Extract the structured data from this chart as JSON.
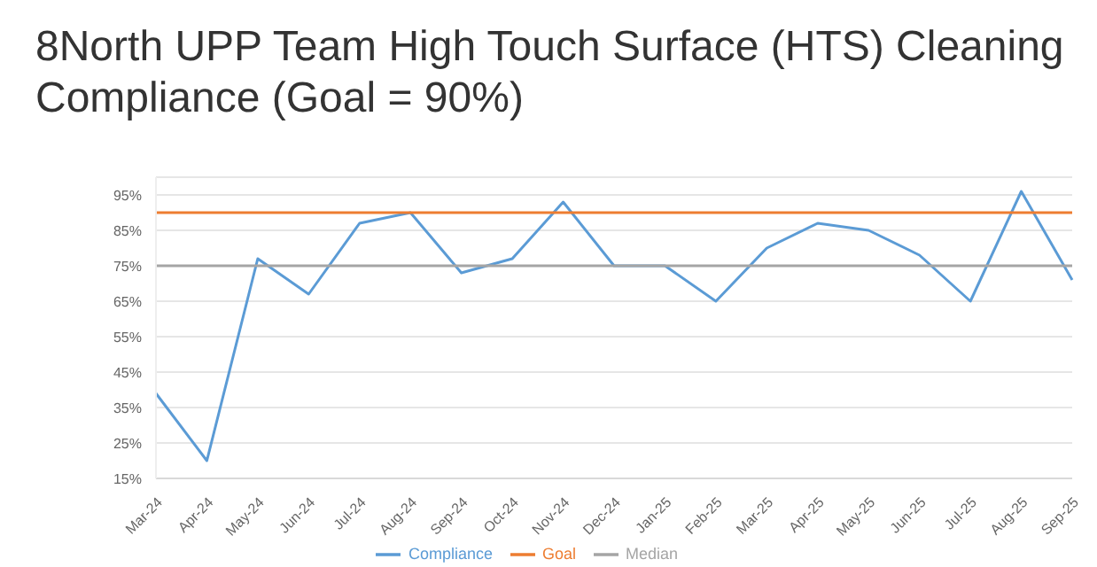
{
  "chart_data": {
    "type": "line",
    "title": "8North UPP Team High Touch Surface (HTS) Cleaning Compliance (Goal = 90%)",
    "categories": [
      "Mar-24",
      "Apr-24",
      "May-24",
      "Jun-24",
      "Jul-24",
      "Aug-24",
      "Sep-24",
      "Oct-24",
      "Nov-24",
      "Dec-24",
      "Jan-25",
      "Feb-25",
      "Mar-25",
      "Apr-25",
      "May-25",
      "Jun-25",
      "Jul-25",
      "Aug-25",
      "Sep-25"
    ],
    "series": [
      {
        "name": "Compliance",
        "color": "#5b9bd5",
        "values": [
          39,
          20,
          77,
          67,
          87,
          90,
          73,
          77,
          93,
          75,
          75,
          65,
          80,
          87,
          85,
          78,
          65,
          96,
          71
        ]
      },
      {
        "name": "Goal",
        "color": "#ed7d31",
        "values": [
          90,
          90,
          90,
          90,
          90,
          90,
          90,
          90,
          90,
          90,
          90,
          90,
          90,
          90,
          90,
          90,
          90,
          90,
          90
        ]
      },
      {
        "name": "Median",
        "color": "#a5a5a5",
        "values": [
          75,
          75,
          75,
          75,
          75,
          75,
          75,
          75,
          75,
          75,
          75,
          75,
          75,
          75,
          75,
          75,
          75,
          75,
          75
        ]
      }
    ],
    "ylim": [
      15,
      100
    ],
    "yticks": [
      {
        "value": 15,
        "label": "15%"
      },
      {
        "value": 25,
        "label": "25%"
      },
      {
        "value": 35,
        "label": "35%"
      },
      {
        "value": 45,
        "label": "45%"
      },
      {
        "value": 55,
        "label": "55%"
      },
      {
        "value": 65,
        "label": "65%"
      },
      {
        "value": 75,
        "label": "75%"
      },
      {
        "value": 85,
        "label": "85%"
      },
      {
        "value": 95,
        "label": "95%"
      }
    ],
    "grid": "y",
    "legend": "bottom",
    "marker": "none",
    "line_style": "solid"
  }
}
